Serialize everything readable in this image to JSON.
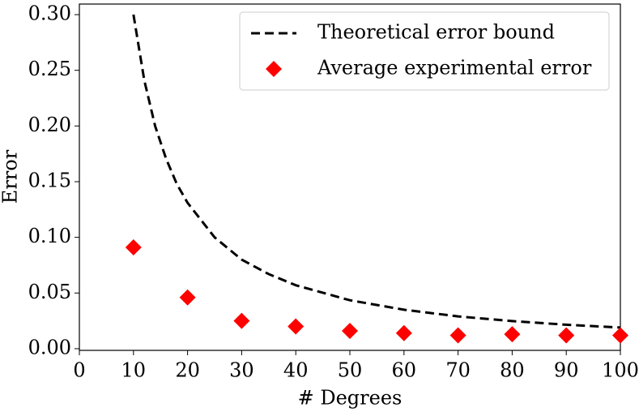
{
  "chart_data": {
    "type": "line",
    "xlabel": "# Degrees",
    "ylabel": "Error",
    "xlim": [
      0,
      100
    ],
    "ylim": [
      -0.0015,
      0.3095
    ],
    "xticks": [
      0,
      10,
      20,
      30,
      40,
      50,
      60,
      70,
      80,
      90,
      100
    ],
    "yticks": [
      {
        "value": 0,
        "label": "0.00"
      },
      {
        "value": 0.05,
        "label": "0.05"
      },
      {
        "value": 0.1,
        "label": "0.10"
      },
      {
        "value": 0.15,
        "label": "0.15"
      },
      {
        "value": 0.2,
        "label": "0.20"
      },
      {
        "value": 0.25,
        "label": "0.25"
      },
      {
        "value": 0.3,
        "label": "0.30"
      }
    ],
    "legend": "upper right",
    "series": [
      {
        "name": "Theoretical error bound",
        "color": "#000000",
        "style": "dashed",
        "x": [
          10,
          12,
          14,
          16,
          18,
          20,
          25,
          30,
          35,
          40,
          50,
          60,
          70,
          80,
          90,
          100
        ],
        "values": [
          0.3,
          0.241,
          0.2,
          0.171,
          0.148,
          0.131,
          0.1,
          0.08,
          0.067,
          0.057,
          0.0435,
          0.035,
          0.029,
          0.0248,
          0.0215,
          0.019
        ]
      },
      {
        "name": "Average experimental error",
        "color": "#ff0000",
        "style": "diamond",
        "x": [
          10,
          20,
          30,
          40,
          50,
          60,
          70,
          80,
          90,
          100
        ],
        "values": [
          0.091,
          0.046,
          0.025,
          0.02,
          0.016,
          0.014,
          0.012,
          0.013,
          0.012,
          0.012
        ]
      }
    ]
  }
}
